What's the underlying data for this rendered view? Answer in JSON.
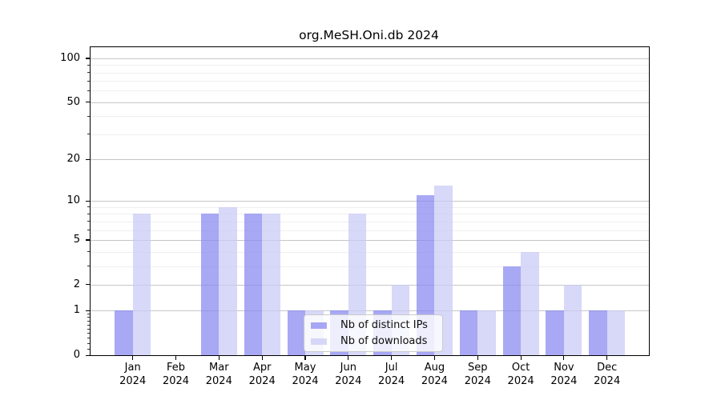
{
  "chart_data": {
    "type": "bar",
    "title": "org.MeSH.Oni.db 2024",
    "categories": [
      "Jan",
      "Feb",
      "Mar",
      "Apr",
      "May",
      "Jun",
      "Jul",
      "Aug",
      "Sep",
      "Oct",
      "Nov",
      "Dec"
    ],
    "category_year": "2024",
    "series": [
      {
        "name": "Nb of distinct IPs",
        "color": "#8787f0",
        "alpha": 0.72,
        "values": [
          1,
          0,
          8,
          8,
          1,
          1,
          1,
          11,
          1,
          3,
          1,
          1
        ]
      },
      {
        "name": "Nb of downloads",
        "color": "#c9c9f5",
        "alpha": 0.72,
        "values": [
          8,
          0,
          9,
          8,
          1,
          8,
          2,
          13,
          1,
          4,
          2,
          1
        ]
      }
    ],
    "xlabel": "",
    "ylabel": "",
    "yscale": "log1p",
    "ylim": [
      0,
      119
    ],
    "yticks": [
      0,
      1,
      2,
      5,
      10,
      20,
      50,
      100
    ],
    "yticks_minor": [
      3,
      4,
      6,
      7,
      8,
      9,
      30,
      40,
      60,
      70,
      80,
      90
    ],
    "yticks_sub1": [
      0.1,
      0.2,
      0.3,
      0.4,
      0.5,
      0.6,
      0.7,
      0.8,
      0.9
    ],
    "grid": true,
    "legend_position": "lower-center-inside",
    "colors": {
      "major_grid": "#c6c6c6",
      "minor_grid": "#efefef",
      "spine": "#000000",
      "background": "#ffffff",
      "text": "#000000"
    }
  }
}
